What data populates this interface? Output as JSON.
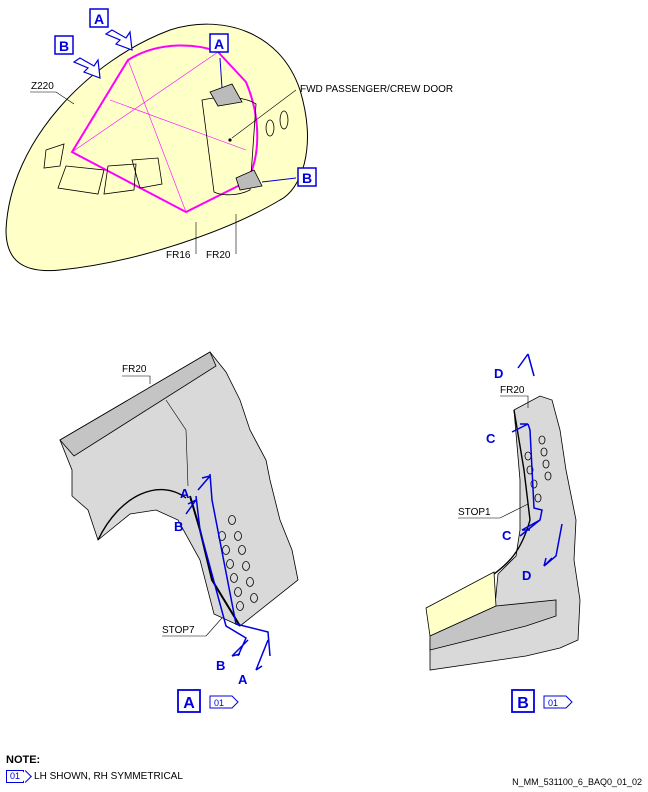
{
  "top_view": {
    "label_a_top": "A",
    "label_b_left": "B",
    "label_a_door": "A",
    "label_b_door": "B",
    "zone": "Z220",
    "door_label": "FWD PASSENGER/CREW DOOR",
    "frame_16": "FR16",
    "frame_20": "FR20"
  },
  "view_a": {
    "frame": "FR20",
    "stop": "STOP7",
    "section_a_top": "A",
    "section_b_top": "B",
    "section_b_bottom": "B",
    "section_a_bottom": "A",
    "title": "A",
    "effectivity": "01"
  },
  "view_b": {
    "section_d_top": "D",
    "frame": "FR20",
    "section_c_top": "C",
    "stop": "STOP1",
    "section_c_bottom": "C",
    "section_d_bottom": "D",
    "title": "B",
    "effectivity": "01"
  },
  "note": {
    "title": "NOTE:",
    "effectivity": "01",
    "text": "LH SHOWN, RH SYMMETRICAL"
  },
  "reference": "N_MM_531100_6_BAQ0_01_02",
  "colors": {
    "fuselage": "#ffffc8",
    "highlight": "#ff00ff",
    "callout": "#0000dd",
    "structure": "#d9d9d9"
  }
}
